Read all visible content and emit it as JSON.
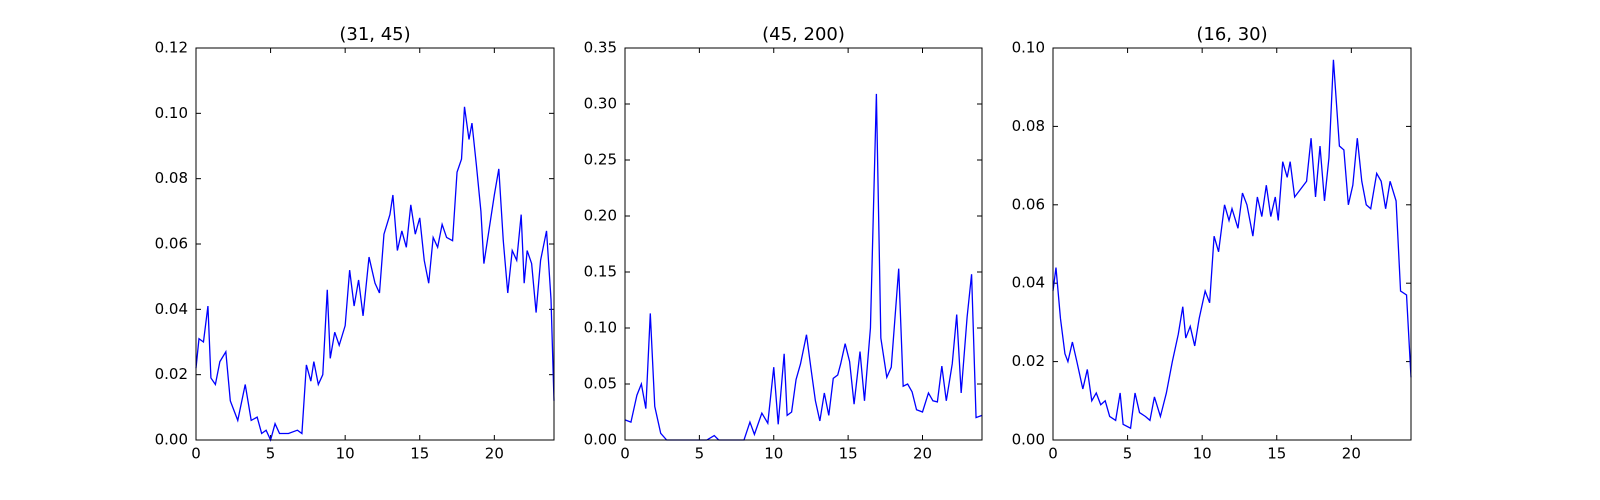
{
  "chart_data": [
    {
      "type": "line",
      "title": "(31, 45)",
      "color": "#0000ff",
      "xlim": [
        0,
        24
      ],
      "ylim": [
        0,
        0.12
      ],
      "xticks": [
        0,
        5,
        10,
        15,
        20
      ],
      "yticks": [
        {
          "value": 0,
          "label": "0.00"
        },
        {
          "value": 0.02,
          "label": "0.02"
        },
        {
          "value": 0.04,
          "label": "0.04"
        },
        {
          "value": 0.06,
          "label": "0.06"
        },
        {
          "value": 0.08,
          "label": "0.08"
        },
        {
          "value": 0.1,
          "label": "0.10"
        },
        {
          "value": 0.12,
          "label": "0.12"
        }
      ],
      "x": [
        0,
        0.2,
        0.5,
        0.8,
        1.0,
        1.3,
        1.6,
        2.0,
        2.3,
        2.8,
        3.3,
        3.7,
        4.1,
        4.4,
        4.7,
        5.0,
        5.3,
        5.6,
        6.2,
        6.8,
        7.1,
        7.4,
        7.7,
        7.9,
        8.2,
        8.5,
        8.8,
        9.0,
        9.3,
        9.6,
        10.0,
        10.3,
        10.6,
        10.9,
        11.2,
        11.6,
        12.0,
        12.3,
        12.6,
        13.0,
        13.2,
        13.5,
        13.8,
        14.1,
        14.4,
        14.7,
        15.0,
        15.3,
        15.6,
        15.9,
        16.2,
        16.5,
        16.8,
        17.2,
        17.5,
        17.8,
        18.0,
        18.3,
        18.5,
        18.8,
        19.1,
        19.3,
        19.6,
        20.0,
        20.3,
        20.6,
        20.9,
        21.2,
        21.5,
        21.8,
        22.0,
        22.2,
        22.5,
        22.8,
        23.1,
        23.5,
        23.8,
        24
      ],
      "values": [
        0.022,
        0.031,
        0.03,
        0.041,
        0.019,
        0.017,
        0.024,
        0.027,
        0.012,
        0.006,
        0.017,
        0.006,
        0.007,
        0.002,
        0.003,
        0.0,
        0.005,
        0.002,
        0.002,
        0.003,
        0.002,
        0.023,
        0.018,
        0.024,
        0.017,
        0.02,
        0.046,
        0.025,
        0.033,
        0.029,
        0.035,
        0.052,
        0.041,
        0.049,
        0.038,
        0.056,
        0.048,
        0.045,
        0.063,
        0.069,
        0.075,
        0.058,
        0.064,
        0.059,
        0.072,
        0.063,
        0.068,
        0.055,
        0.048,
        0.062,
        0.059,
        0.066,
        0.062,
        0.061,
        0.082,
        0.086,
        0.102,
        0.092,
        0.097,
        0.084,
        0.07,
        0.054,
        0.063,
        0.075,
        0.083,
        0.061,
        0.045,
        0.058,
        0.055,
        0.069,
        0.048,
        0.058,
        0.054,
        0.039,
        0.055,
        0.064,
        0.043,
        0.012
      ]
    },
    {
      "type": "line",
      "title": "(45, 200)",
      "color": "#0000ff",
      "xlim": [
        0,
        24
      ],
      "ylim": [
        0,
        0.35
      ],
      "xticks": [
        0,
        5,
        10,
        15,
        20
      ],
      "yticks": [
        {
          "value": 0,
          "label": "0.00"
        },
        {
          "value": 0.05,
          "label": "0.05"
        },
        {
          "value": 0.1,
          "label": "0.10"
        },
        {
          "value": 0.15,
          "label": "0.15"
        },
        {
          "value": 0.2,
          "label": "0.20"
        },
        {
          "value": 0.25,
          "label": "0.25"
        },
        {
          "value": 0.3,
          "label": "0.30"
        },
        {
          "value": 0.35,
          "label": "0.35"
        }
      ],
      "x": [
        0,
        0.4,
        0.8,
        1.1,
        1.4,
        1.7,
        2.0,
        2.4,
        2.8,
        4,
        5.5,
        6.0,
        6.3,
        8,
        8.4,
        8.7,
        9.2,
        9.6,
        10.0,
        10.3,
        10.7,
        10.9,
        11.2,
        11.5,
        11.8,
        12.2,
        12.5,
        12.8,
        13.1,
        13.4,
        13.7,
        14.0,
        14.3,
        14.5,
        14.8,
        15.1,
        15.4,
        15.8,
        16.1,
        16.5,
        16.9,
        17.2,
        17.6,
        17.9,
        18.4,
        18.7,
        19.0,
        19.3,
        19.6,
        20.0,
        20.4,
        20.7,
        21.0,
        21.3,
        21.6,
        22.0,
        22.3,
        22.6,
        23.0,
        23.3,
        23.6,
        24
      ],
      "values": [
        0.018,
        0.016,
        0.04,
        0.05,
        0.028,
        0.113,
        0.03,
        0.006,
        0,
        0,
        0,
        0.004,
        0,
        0,
        0.016,
        0.005,
        0.024,
        0.015,
        0.065,
        0.014,
        0.077,
        0.022,
        0.025,
        0.054,
        0.068,
        0.094,
        0.064,
        0.035,
        0.017,
        0.042,
        0.022,
        0.055,
        0.058,
        0.068,
        0.086,
        0.07,
        0.032,
        0.079,
        0.035,
        0.1,
        0.309,
        0.091,
        0.056,
        0.065,
        0.153,
        0.048,
        0.05,
        0.043,
        0.027,
        0.025,
        0.042,
        0.035,
        0.034,
        0.066,
        0.035,
        0.068,
        0.112,
        0.042,
        0.11,
        0.148,
        0.02,
        0.022
      ]
    },
    {
      "type": "line",
      "title": "(16, 30)",
      "color": "#0000ff",
      "xlim": [
        0,
        24
      ],
      "ylim": [
        0,
        0.1
      ],
      "xticks": [
        0,
        5,
        10,
        15,
        20
      ],
      "yticks": [
        {
          "value": 0,
          "label": "0.00"
        },
        {
          "value": 0.02,
          "label": "0.02"
        },
        {
          "value": 0.04,
          "label": "0.04"
        },
        {
          "value": 0.06,
          "label": "0.06"
        },
        {
          "value": 0.08,
          "label": "0.08"
        },
        {
          "value": 0.1,
          "label": "0.10"
        }
      ],
      "x": [
        0,
        0.2,
        0.5,
        0.8,
        1.0,
        1.3,
        1.6,
        2.0,
        2.3,
        2.6,
        2.9,
        3.2,
        3.5,
        3.8,
        4.2,
        4.5,
        4.7,
        5.2,
        5.5,
        5.8,
        6.2,
        6.5,
        6.8,
        7.2,
        7.6,
        8.0,
        8.4,
        8.7,
        8.9,
        9.2,
        9.5,
        9.8,
        10.2,
        10.5,
        10.8,
        11.1,
        11.5,
        11.8,
        12.0,
        12.4,
        12.7,
        13.0,
        13.4,
        13.7,
        14.0,
        14.3,
        14.6,
        14.9,
        15.1,
        15.4,
        15.7,
        15.9,
        16.2,
        16.6,
        17.0,
        17.3,
        17.6,
        17.9,
        18.2,
        18.5,
        18.8,
        19.2,
        19.5,
        19.8,
        20.1,
        20.4,
        20.7,
        21.0,
        21.3,
        21.7,
        22.0,
        22.3,
        22.6,
        23.0,
        23.3,
        23.7,
        24
      ],
      "values": [
        0.038,
        0.044,
        0.031,
        0.022,
        0.02,
        0.025,
        0.02,
        0.013,
        0.018,
        0.01,
        0.012,
        0.009,
        0.01,
        0.006,
        0.005,
        0.012,
        0.004,
        0.003,
        0.012,
        0.007,
        0.006,
        0.005,
        0.011,
        0.006,
        0.012,
        0.02,
        0.027,
        0.034,
        0.026,
        0.029,
        0.024,
        0.031,
        0.038,
        0.035,
        0.052,
        0.048,
        0.06,
        0.056,
        0.059,
        0.054,
        0.063,
        0.06,
        0.052,
        0.062,
        0.057,
        0.065,
        0.057,
        0.062,
        0.056,
        0.071,
        0.067,
        0.071,
        0.062,
        0.064,
        0.066,
        0.077,
        0.062,
        0.075,
        0.061,
        0.072,
        0.097,
        0.075,
        0.074,
        0.06,
        0.065,
        0.077,
        0.066,
        0.06,
        0.059,
        0.068,
        0.066,
        0.059,
        0.066,
        0.061,
        0.038,
        0.037,
        0.016
      ]
    }
  ]
}
